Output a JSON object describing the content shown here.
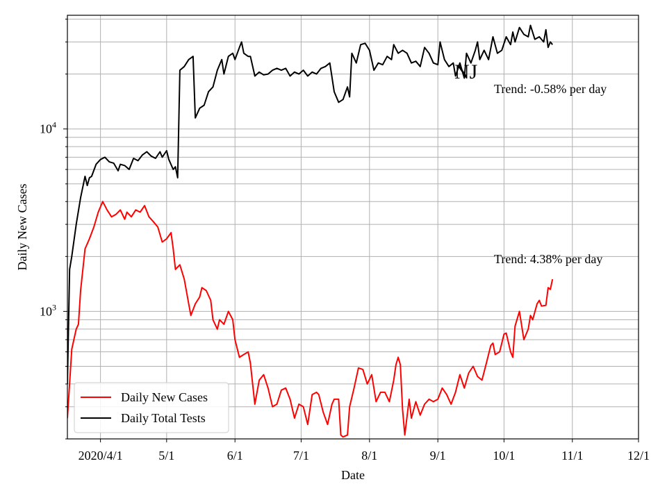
{
  "chart_data": {
    "type": "line",
    "xlabel": "Date",
    "ylabel": "Daily New Cases",
    "y_scale": "log",
    "ylim": [
      200,
      42000
    ],
    "xlim": [
      "2020-03-17",
      "2020-12-01"
    ],
    "x_tick_labels": [
      "2020/4/1",
      "5/1",
      "6/1",
      "7/1",
      "8/1",
      "9/1",
      "10/1",
      "11/1",
      "12/1"
    ],
    "x_tick_dates": [
      "2020-04-01",
      "2020-05-01",
      "2020-06-01",
      "2020-07-01",
      "2020-08-01",
      "2020-09-01",
      "2020-10-01",
      "2020-11-01",
      "2020-12-01"
    ],
    "y_tick_labels": [
      {
        "base": "10",
        "exp": "3",
        "value": 1000
      },
      {
        "base": "10",
        "exp": "4",
        "value": 10000
      }
    ],
    "grid": true,
    "legend_position": "lower-left",
    "series": [
      {
        "name": "Daily New Cases",
        "color": "#ff0000",
        "points": [
          [
            "2020-03-17",
            260
          ],
          [
            "2020-03-19",
            620
          ],
          [
            "2020-03-21",
            800
          ],
          [
            "2020-03-22",
            850
          ],
          [
            "2020-03-23",
            1300
          ],
          [
            "2020-03-25",
            2200
          ],
          [
            "2020-03-27",
            2500
          ],
          [
            "2020-03-29",
            2900
          ],
          [
            "2020-03-31",
            3500
          ],
          [
            "2020-04-02",
            4000
          ],
          [
            "2020-04-04",
            3600
          ],
          [
            "2020-04-06",
            3300
          ],
          [
            "2020-04-08",
            3400
          ],
          [
            "2020-04-10",
            3600
          ],
          [
            "2020-04-12",
            3200
          ],
          [
            "2020-04-13",
            3500
          ],
          [
            "2020-04-15",
            3300
          ],
          [
            "2020-04-17",
            3600
          ],
          [
            "2020-04-19",
            3500
          ],
          [
            "2020-04-21",
            3800
          ],
          [
            "2020-04-23",
            3300
          ],
          [
            "2020-04-25",
            3100
          ],
          [
            "2020-04-27",
            2900
          ],
          [
            "2020-04-29",
            2400
          ],
          [
            "2020-05-01",
            2500
          ],
          [
            "2020-05-03",
            2700
          ],
          [
            "2020-05-04",
            2200
          ],
          [
            "2020-05-05",
            1700
          ],
          [
            "2020-05-07",
            1800
          ],
          [
            "2020-05-09",
            1500
          ],
          [
            "2020-05-11",
            1100
          ],
          [
            "2020-05-12",
            950
          ],
          [
            "2020-05-14",
            1100
          ],
          [
            "2020-05-16",
            1200
          ],
          [
            "2020-05-17",
            1350
          ],
          [
            "2020-05-19",
            1300
          ],
          [
            "2020-05-21",
            1150
          ],
          [
            "2020-05-22",
            900
          ],
          [
            "2020-05-24",
            800
          ],
          [
            "2020-05-25",
            900
          ],
          [
            "2020-05-27",
            850
          ],
          [
            "2020-05-29",
            1000
          ],
          [
            "2020-05-31",
            900
          ],
          [
            "2020-06-01",
            700
          ],
          [
            "2020-06-03",
            560
          ],
          [
            "2020-06-05",
            580
          ],
          [
            "2020-06-07",
            600
          ],
          [
            "2020-06-08",
            520
          ],
          [
            "2020-06-09",
            400
          ],
          [
            "2020-06-10",
            310
          ],
          [
            "2020-06-12",
            420
          ],
          [
            "2020-06-14",
            450
          ],
          [
            "2020-06-16",
            380
          ],
          [
            "2020-06-18",
            300
          ],
          [
            "2020-06-20",
            310
          ],
          [
            "2020-06-22",
            370
          ],
          [
            "2020-06-24",
            380
          ],
          [
            "2020-06-26",
            330
          ],
          [
            "2020-06-28",
            260
          ],
          [
            "2020-06-30",
            310
          ],
          [
            "2020-07-02",
            300
          ],
          [
            "2020-07-04",
            240
          ],
          [
            "2020-07-06",
            350
          ],
          [
            "2020-07-08",
            360
          ],
          [
            "2020-07-09",
            350
          ],
          [
            "2020-07-11",
            280
          ],
          [
            "2020-07-13",
            240
          ],
          [
            "2020-07-15",
            310
          ],
          [
            "2020-07-16",
            330
          ],
          [
            "2020-07-18",
            330
          ],
          [
            "2020-07-19",
            210
          ],
          [
            "2020-07-20",
            205
          ],
          [
            "2020-07-22",
            210
          ],
          [
            "2020-07-23",
            300
          ],
          [
            "2020-07-25",
            380
          ],
          [
            "2020-07-27",
            490
          ],
          [
            "2020-07-29",
            480
          ],
          [
            "2020-07-31",
            400
          ],
          [
            "2020-08-02",
            450
          ],
          [
            "2020-08-04",
            320
          ],
          [
            "2020-08-06",
            360
          ],
          [
            "2020-08-08",
            360
          ],
          [
            "2020-08-10",
            320
          ],
          [
            "2020-08-12",
            420
          ],
          [
            "2020-08-13",
            510
          ],
          [
            "2020-08-14",
            560
          ],
          [
            "2020-08-15",
            510
          ],
          [
            "2020-08-16",
            290
          ],
          [
            "2020-08-17",
            210
          ],
          [
            "2020-08-19",
            330
          ],
          [
            "2020-08-20",
            260
          ],
          [
            "2020-08-22",
            320
          ],
          [
            "2020-08-24",
            270
          ],
          [
            "2020-08-26",
            310
          ],
          [
            "2020-08-28",
            330
          ],
          [
            "2020-08-30",
            320
          ],
          [
            "2020-09-01",
            330
          ],
          [
            "2020-09-03",
            380
          ],
          [
            "2020-09-05",
            350
          ],
          [
            "2020-09-07",
            310
          ],
          [
            "2020-09-09",
            360
          ],
          [
            "2020-09-11",
            450
          ],
          [
            "2020-09-13",
            380
          ],
          [
            "2020-09-15",
            460
          ],
          [
            "2020-09-17",
            500
          ],
          [
            "2020-09-19",
            440
          ],
          [
            "2020-09-21",
            420
          ],
          [
            "2020-09-23",
            520
          ],
          [
            "2020-09-25",
            650
          ],
          [
            "2020-09-26",
            670
          ],
          [
            "2020-09-27",
            580
          ],
          [
            "2020-09-29",
            600
          ],
          [
            "2020-10-01",
            750
          ],
          [
            "2020-10-02",
            760
          ],
          [
            "2020-10-04",
            600
          ],
          [
            "2020-10-05",
            560
          ],
          [
            "2020-10-06",
            830
          ],
          [
            "2020-10-08",
            1000
          ],
          [
            "2020-10-10",
            700
          ],
          [
            "2020-10-12",
            800
          ],
          [
            "2020-10-13",
            950
          ],
          [
            "2020-10-14",
            900
          ],
          [
            "2020-10-16",
            1100
          ],
          [
            "2020-10-17",
            1150
          ],
          [
            "2020-10-18",
            1070
          ],
          [
            "2020-10-20",
            1080
          ],
          [
            "2020-10-21",
            1350
          ],
          [
            "2020-10-22",
            1320
          ],
          [
            "2020-10-23",
            1500
          ]
        ]
      },
      {
        "name": "Daily Total Tests",
        "color": "#000000",
        "points": [
          [
            "2020-03-17",
            400
          ],
          [
            "2020-03-18",
            1700
          ],
          [
            "2020-03-19",
            2000
          ],
          [
            "2020-03-21",
            3000
          ],
          [
            "2020-03-23",
            4200
          ],
          [
            "2020-03-25",
            5500
          ],
          [
            "2020-03-26",
            4900
          ],
          [
            "2020-03-27",
            5400
          ],
          [
            "2020-03-28",
            5500
          ],
          [
            "2020-03-30",
            6400
          ],
          [
            "2020-04-01",
            6800
          ],
          [
            "2020-04-03",
            7000
          ],
          [
            "2020-04-05",
            6600
          ],
          [
            "2020-04-07",
            6500
          ],
          [
            "2020-04-09",
            5900
          ],
          [
            "2020-04-10",
            6400
          ],
          [
            "2020-04-12",
            6300
          ],
          [
            "2020-04-14",
            6000
          ],
          [
            "2020-04-16",
            6900
          ],
          [
            "2020-04-18",
            6700
          ],
          [
            "2020-04-20",
            7200
          ],
          [
            "2020-04-22",
            7500
          ],
          [
            "2020-04-24",
            7100
          ],
          [
            "2020-04-26",
            6900
          ],
          [
            "2020-04-28",
            7500
          ],
          [
            "2020-04-29",
            7000
          ],
          [
            "2020-05-01",
            7600
          ],
          [
            "2020-05-02",
            6800
          ],
          [
            "2020-05-04",
            6000
          ],
          [
            "2020-05-05",
            6200
          ],
          [
            "2020-05-06",
            5400
          ],
          [
            "2020-05-07",
            21000
          ],
          [
            "2020-05-09",
            22000
          ],
          [
            "2020-05-11",
            24000
          ],
          [
            "2020-05-13",
            25000
          ],
          [
            "2020-05-14",
            11500
          ],
          [
            "2020-05-16",
            13000
          ],
          [
            "2020-05-18",
            13500
          ],
          [
            "2020-05-20",
            16000
          ],
          [
            "2020-05-22",
            17000
          ],
          [
            "2020-05-24",
            21000
          ],
          [
            "2020-05-26",
            24000
          ],
          [
            "2020-05-27",
            20000
          ],
          [
            "2020-05-29",
            25000
          ],
          [
            "2020-05-31",
            26000
          ],
          [
            "2020-06-01",
            24000
          ],
          [
            "2020-06-03",
            28000
          ],
          [
            "2020-06-04",
            30000
          ],
          [
            "2020-06-05",
            26000
          ],
          [
            "2020-06-07",
            25000
          ],
          [
            "2020-06-08",
            25000
          ],
          [
            "2020-06-10",
            19500
          ],
          [
            "2020-06-12",
            20500
          ],
          [
            "2020-06-14",
            19800
          ],
          [
            "2020-06-16",
            20000
          ],
          [
            "2020-06-18",
            21000
          ],
          [
            "2020-06-20",
            21500
          ],
          [
            "2020-06-22",
            21000
          ],
          [
            "2020-06-24",
            21500
          ],
          [
            "2020-06-26",
            19500
          ],
          [
            "2020-06-28",
            20500
          ],
          [
            "2020-06-30",
            20000
          ],
          [
            "2020-07-02",
            21000
          ],
          [
            "2020-07-04",
            19500
          ],
          [
            "2020-07-06",
            20500
          ],
          [
            "2020-07-08",
            20000
          ],
          [
            "2020-07-10",
            21500
          ],
          [
            "2020-07-12",
            22000
          ],
          [
            "2020-07-14",
            23000
          ],
          [
            "2020-07-16",
            16000
          ],
          [
            "2020-07-18",
            14000
          ],
          [
            "2020-07-20",
            14500
          ],
          [
            "2020-07-22",
            17000
          ],
          [
            "2020-07-23",
            15000
          ],
          [
            "2020-07-24",
            26000
          ],
          [
            "2020-07-26",
            23000
          ],
          [
            "2020-07-28",
            29000
          ],
          [
            "2020-07-30",
            29500
          ],
          [
            "2020-08-01",
            27000
          ],
          [
            "2020-08-03",
            21000
          ],
          [
            "2020-08-05",
            23000
          ],
          [
            "2020-08-07",
            22500
          ],
          [
            "2020-08-09",
            25000
          ],
          [
            "2020-08-11",
            24000
          ],
          [
            "2020-08-12",
            29000
          ],
          [
            "2020-08-14",
            26000
          ],
          [
            "2020-08-16",
            27000
          ],
          [
            "2020-08-18",
            26000
          ],
          [
            "2020-08-20",
            23000
          ],
          [
            "2020-08-22",
            23500
          ],
          [
            "2020-08-24",
            22000
          ],
          [
            "2020-08-26",
            28000
          ],
          [
            "2020-08-28",
            26000
          ],
          [
            "2020-08-30",
            23000
          ],
          [
            "2020-09-01",
            22500
          ],
          [
            "2020-09-02",
            30000
          ],
          [
            "2020-09-04",
            24000
          ],
          [
            "2020-09-06",
            22000
          ],
          [
            "2020-09-08",
            23000
          ],
          [
            "2020-09-09",
            19500
          ],
          [
            "2020-09-11",
            23000
          ],
          [
            "2020-09-13",
            19000
          ],
          [
            "2020-09-14",
            26000
          ],
          [
            "2020-09-16",
            23000
          ],
          [
            "2020-09-18",
            27000
          ],
          [
            "2020-09-19",
            30000
          ],
          [
            "2020-09-20",
            24000
          ],
          [
            "2020-09-22",
            27000
          ],
          [
            "2020-09-24",
            24000
          ],
          [
            "2020-09-26",
            32000
          ],
          [
            "2020-09-28",
            26000
          ],
          [
            "2020-09-30",
            27000
          ],
          [
            "2020-10-02",
            32000
          ],
          [
            "2020-10-04",
            29000
          ],
          [
            "2020-10-05",
            34000
          ],
          [
            "2020-10-06",
            30000
          ],
          [
            "2020-10-08",
            36000
          ],
          [
            "2020-10-10",
            33000
          ],
          [
            "2020-10-12",
            32000
          ],
          [
            "2020-10-13",
            37000
          ],
          [
            "2020-10-15",
            31000
          ],
          [
            "2020-10-17",
            32000
          ],
          [
            "2020-10-19",
            30000
          ],
          [
            "2020-10-20",
            35000
          ],
          [
            "2020-10-21",
            28000
          ],
          [
            "2020-10-22",
            30000
          ],
          [
            "2020-10-23",
            29000
          ]
        ]
      }
    ],
    "annotations": [
      {
        "text": "Trend: -0.58% per day"
      },
      {
        "text": "Trend: 4.38% per day"
      },
      {
        "text": "NJ"
      }
    ]
  }
}
